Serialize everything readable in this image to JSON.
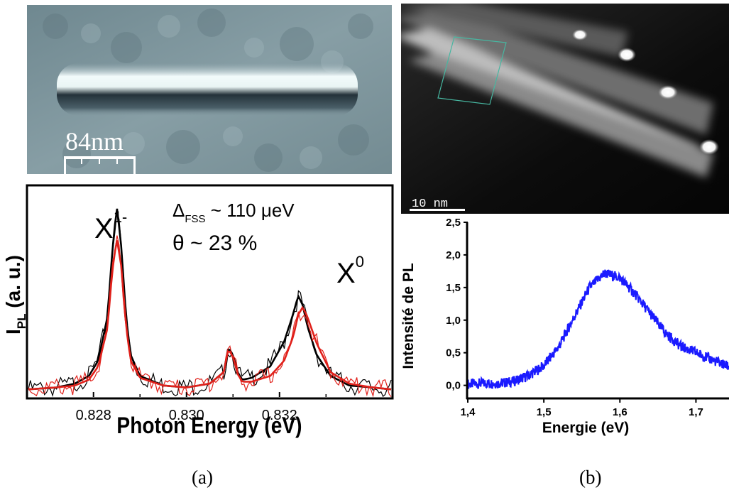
{
  "panel_a": {
    "image": {
      "scale_label": "84nm"
    },
    "chart": {
      "ylabel": "I",
      "ylabel_sub": "PL",
      "ylabel_suffix": " (a. u.)",
      "xlabel": "Photon Energy (eV)",
      "xticks": [
        "0.828",
        "0.830",
        "0.832"
      ],
      "peak_label_1": "X",
      "peak_label_1_sup": "1-",
      "peak_label_2": "X",
      "peak_label_2_sup": "0",
      "annotation_delta": "Δ",
      "annotation_delta_sub": "FSS",
      "annotation_delta_value": " ~ 110 μeV",
      "annotation_theta": "θ ~ 23 %"
    },
    "caption": "(a)"
  },
  "panel_b": {
    "image": {
      "scale_label": "10 nm"
    },
    "chart": {
      "ylabel": "Intensité de PL",
      "xlabel": "Energie (eV)",
      "xticks": [
        "1,4",
        "1,5",
        "1,6",
        "1,7"
      ],
      "yticks": [
        "0,0",
        "0,5",
        "1,0",
        "1,5",
        "2,0",
        "2,5"
      ]
    },
    "caption": "(b)"
  },
  "colors": {
    "black_series": "#000000",
    "red_series": "#e0201a",
    "blue_series": "#1a1aff"
  },
  "chart_data": [
    {
      "type": "line",
      "xlabel": "Photon Energy (eV)",
      "ylabel": "I PL (a. u.)",
      "xlim": [
        0.8266,
        0.8344
      ],
      "ylim": [
        0,
        1.1
      ],
      "grid": false,
      "series": [
        {
          "color": "#000000",
          "x": [
            0.8266,
            0.8272,
            0.8276,
            0.8279,
            0.8281,
            0.8283,
            0.8284,
            0.8285,
            0.8286,
            0.8287,
            0.8288,
            0.829,
            0.8295,
            0.83,
            0.8305,
            0.8308,
            0.8309,
            0.831,
            0.8311,
            0.8312,
            0.8314,
            0.8318,
            0.8321,
            0.8323,
            0.8324,
            0.8325,
            0.8326,
            0.8328,
            0.8331,
            0.8335,
            0.834,
            0.8344
          ],
          "y": [
            0.04,
            0.05,
            0.07,
            0.11,
            0.19,
            0.42,
            0.75,
            1.0,
            0.78,
            0.42,
            0.22,
            0.11,
            0.06,
            0.05,
            0.07,
            0.13,
            0.26,
            0.22,
            0.13,
            0.09,
            0.1,
            0.16,
            0.29,
            0.44,
            0.53,
            0.48,
            0.37,
            0.22,
            0.11,
            0.06,
            0.05,
            0.04
          ]
        },
        {
          "color": "#e0201a",
          "x": [
            0.8266,
            0.8272,
            0.8276,
            0.8279,
            0.8281,
            0.8283,
            0.8284,
            0.8285,
            0.8286,
            0.8287,
            0.8288,
            0.829,
            0.8295,
            0.83,
            0.8305,
            0.8308,
            0.8309,
            0.831,
            0.8311,
            0.8312,
            0.8314,
            0.8318,
            0.8321,
            0.8323,
            0.8324,
            0.8325,
            0.8326,
            0.8328,
            0.8331,
            0.8335,
            0.834,
            0.8344
          ],
          "y": [
            0.04,
            0.05,
            0.06,
            0.09,
            0.16,
            0.36,
            0.65,
            0.83,
            0.68,
            0.37,
            0.19,
            0.1,
            0.06,
            0.05,
            0.07,
            0.13,
            0.25,
            0.21,
            0.12,
            0.08,
            0.08,
            0.11,
            0.19,
            0.32,
            0.43,
            0.47,
            0.42,
            0.28,
            0.13,
            0.07,
            0.05,
            0.04
          ]
        }
      ]
    },
    {
      "type": "line",
      "xlabel": "Energie (eV)",
      "ylabel": "Intensité de PL",
      "xlim": [
        1.4,
        1.75
      ],
      "ylim": [
        -0.2,
        2.5
      ],
      "grid": false,
      "series": [
        {
          "color": "#1a1aff",
          "x": [
            1.4,
            1.42,
            1.44,
            1.46,
            1.48,
            1.5,
            1.52,
            1.54,
            1.56,
            1.58,
            1.6,
            1.62,
            1.64,
            1.66,
            1.68,
            1.7,
            1.72,
            1.74,
            1.75
          ],
          "y": [
            0.02,
            0.03,
            0.03,
            0.06,
            0.15,
            0.3,
            0.6,
            1.05,
            1.5,
            1.72,
            1.65,
            1.4,
            1.1,
            0.8,
            0.6,
            0.5,
            0.4,
            0.3,
            0.27
          ]
        }
      ]
    }
  ]
}
